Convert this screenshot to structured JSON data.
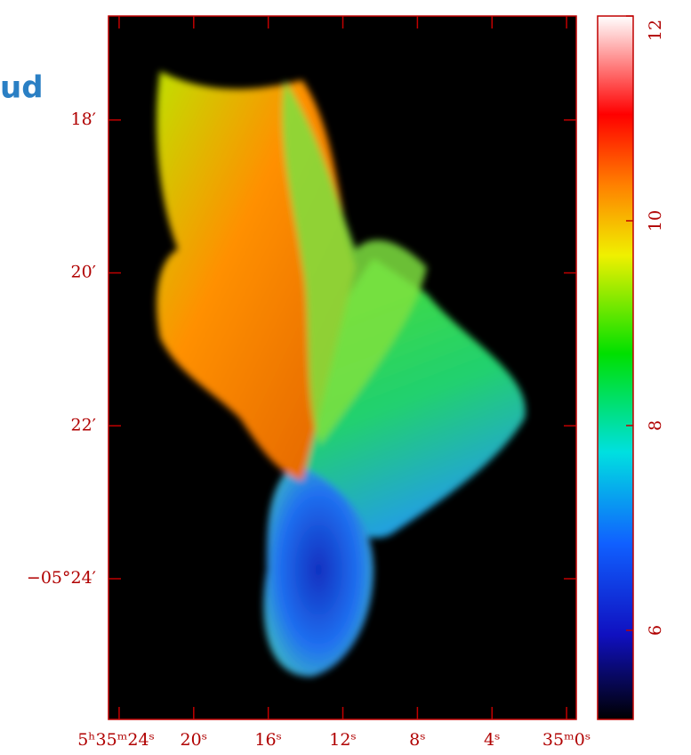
{
  "chart_data": {
    "type": "image",
    "title": "ud",
    "xlim": [
      24.57,
      -0.52
    ],
    "xticks": [
      {
        "value": 24,
        "label": "5ʰ35ᵐ24ˢ"
      },
      {
        "value": 20,
        "label": "20ˢ"
      },
      {
        "value": 16,
        "label": "16ˢ"
      },
      {
        "value": 12,
        "label": "12ˢ"
      },
      {
        "value": 8,
        "label": "8ˢ"
      },
      {
        "value": 4,
        "label": "4ˢ"
      },
      {
        "value": 0,
        "label": "35ᵐ0ˢ"
      }
    ],
    "ylim": [
      -325.84,
      -316.64
    ],
    "yticks": [
      {
        "value": -318,
        "label": "18′"
      },
      {
        "value": -320,
        "label": "20′"
      },
      {
        "value": -322,
        "label": "22′"
      },
      {
        "value": -324,
        "label": "−05°24′"
      }
    ],
    "clim": [
      5.13,
      12
    ],
    "cticks": [
      6,
      8,
      10,
      12
    ],
    "frame_color": "#c00000"
  }
}
